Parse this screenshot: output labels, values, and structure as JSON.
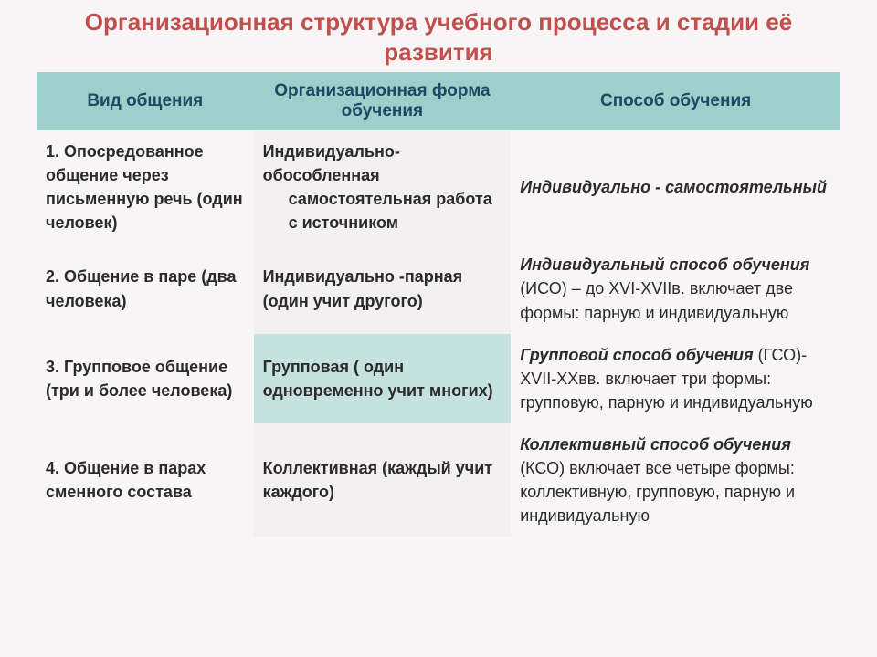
{
  "title": "Организационная структура учебного процесса и стадии её развития",
  "title_color": "#c0504d",
  "title_fontsize": 26,
  "header_bg": "#9fcfca",
  "header_color": "#1c4a66",
  "header_fontsize": 19,
  "body_fontsize": 18,
  "body_color": "#2b2b2b",
  "row_bg_light": "#f2f0f0",
  "row_bg_accent": "#c6e2de",
  "col_widths": [
    "27%",
    "32%",
    "41%"
  ],
  "columns": [
    "Вид общения",
    "Организационная форма обучения",
    "Способ обучения"
  ],
  "rows": [
    {
      "c1": "1. Опосредованное общение через письменную речь (один человек)",
      "c2_line1": "Индивидуально-обособленная",
      "c2_rest": "самостоятельная работа с источником",
      "c3_bold": "Индивидуально - самостоятельный",
      "c3_rest": "",
      "c2_bg": "row_bg_light"
    },
    {
      "c1": "2. Общение в паре (два человека)",
      "c2_line1": "Индивидуально -парная (один учит другого)",
      "c2_rest": "",
      "c3_bold": "Индивидуальный способ обучения",
      "c3_rest": " (ИСО) – до XVI-XVIIв. включает две формы: парную и индивидуальную",
      "c2_bg": "row_bg_light"
    },
    {
      "c1": "3. Групповое общение (три и более человека)",
      "c2_line1": "Групповая ( один одновременно учит многих)",
      "c2_rest": "",
      "c3_bold": "Групповой способ обучения",
      "c3_rest": " (ГСО)-XVII-XXвв. включает три формы: групповую, парную и индивидуальную",
      "c2_bg": "row_bg_accent"
    },
    {
      "c1": "4. Общение в парах сменного состава",
      "c2_line1": "Коллективная (каждый учит каждого)",
      "c2_rest": "",
      "c3_bold": "Коллективный способ обучения",
      "c3_rest": " (КСО) включает все четыре формы: коллективную, групповую, парную и индивидуальную",
      "c2_bg": "row_bg_light"
    }
  ]
}
